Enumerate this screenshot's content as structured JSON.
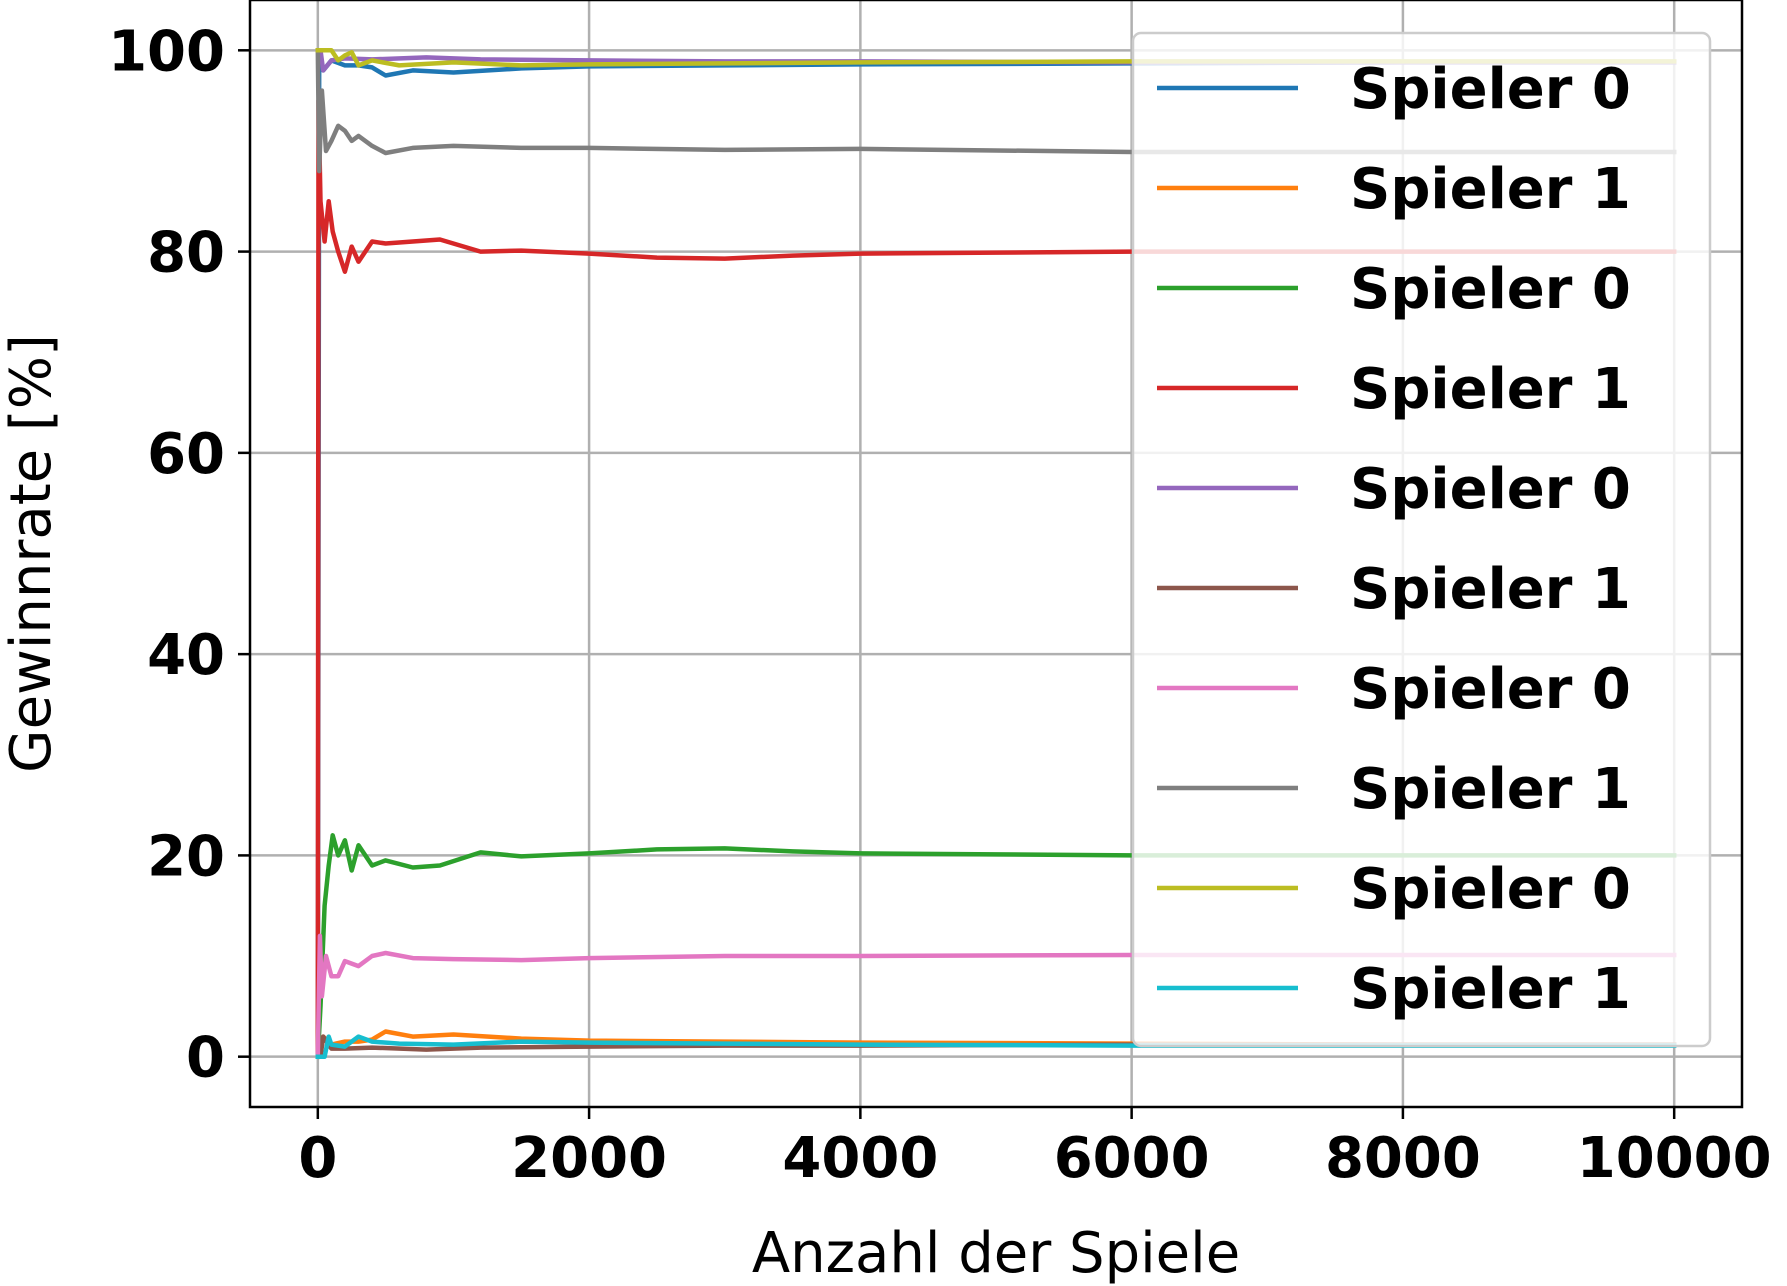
{
  "chart_data": {
    "type": "line",
    "title": "",
    "xlabel": "Anzahl der Spiele",
    "ylabel": "Gewinnrate [%]",
    "xlim": [
      -500,
      10500
    ],
    "ylim": [
      -5,
      105
    ],
    "xticks": [
      0,
      2000,
      4000,
      6000,
      8000,
      10000
    ],
    "xtick_labels": [
      "0",
      "2000",
      "4000",
      "6000",
      "8000",
      "10000"
    ],
    "yticks": [
      0,
      20,
      40,
      60,
      80,
      100
    ],
    "ytick_labels": [
      "0",
      "20",
      "40",
      "60",
      "80",
      "100"
    ],
    "grid": true,
    "legend_position": "upper right",
    "series": [
      {
        "name": "Spieler 0",
        "color": "#1f77b4",
        "points": [
          [
            0,
            0
          ],
          [
            10,
            100
          ],
          [
            40,
            98
          ],
          [
            100,
            99
          ],
          [
            200,
            98.5
          ],
          [
            300,
            98.5
          ],
          [
            400,
            98.3
          ],
          [
            500,
            97.5
          ],
          [
            700,
            98
          ],
          [
            1000,
            97.8
          ],
          [
            1500,
            98.2
          ],
          [
            2000,
            98.4
          ],
          [
            3000,
            98.5
          ],
          [
            4000,
            98.6
          ],
          [
            6000,
            98.7
          ],
          [
            8000,
            98.8
          ],
          [
            10000,
            98.8
          ]
        ]
      },
      {
        "name": "Spieler 1",
        "color": "#ff7f0e",
        "points": [
          [
            0,
            0
          ],
          [
            10,
            0
          ],
          [
            40,
            2
          ],
          [
            100,
            1.2
          ],
          [
            200,
            1.5
          ],
          [
            300,
            1.5
          ],
          [
            400,
            1.7
          ],
          [
            500,
            2.5
          ],
          [
            700,
            2
          ],
          [
            1000,
            2.2
          ],
          [
            1500,
            1.8
          ],
          [
            2000,
            1.6
          ],
          [
            3000,
            1.5
          ],
          [
            4000,
            1.4
          ],
          [
            6000,
            1.3
          ],
          [
            8000,
            1.2
          ],
          [
            10000,
            1.2
          ]
        ]
      },
      {
        "name": "Spieler 0",
        "color": "#2ca02c",
        "points": [
          [
            0,
            0
          ],
          [
            20,
            5
          ],
          [
            50,
            15
          ],
          [
            80,
            19
          ],
          [
            110,
            22
          ],
          [
            150,
            20
          ],
          [
            200,
            21.5
          ],
          [
            250,
            18.5
          ],
          [
            300,
            21
          ],
          [
            400,
            19
          ],
          [
            500,
            19.5
          ],
          [
            700,
            18.8
          ],
          [
            900,
            19
          ],
          [
            1200,
            20.3
          ],
          [
            1500,
            19.9
          ],
          [
            2000,
            20.2
          ],
          [
            2500,
            20.6
          ],
          [
            3000,
            20.7
          ],
          [
            3500,
            20.4
          ],
          [
            4000,
            20.2
          ],
          [
            5000,
            20.1
          ],
          [
            6000,
            20
          ],
          [
            8000,
            20
          ],
          [
            10000,
            20
          ]
        ]
      },
      {
        "name": "Spieler 1",
        "color": "#d62728",
        "points": [
          [
            0,
            0
          ],
          [
            5,
            95
          ],
          [
            20,
            85
          ],
          [
            50,
            81
          ],
          [
            80,
            85
          ],
          [
            110,
            82
          ],
          [
            150,
            80
          ],
          [
            200,
            78
          ],
          [
            250,
            80.5
          ],
          [
            300,
            79
          ],
          [
            400,
            81
          ],
          [
            500,
            80.8
          ],
          [
            700,
            81
          ],
          [
            900,
            81.2
          ],
          [
            1200,
            80
          ],
          [
            1500,
            80.1
          ],
          [
            2000,
            79.8
          ],
          [
            2500,
            79.4
          ],
          [
            3000,
            79.3
          ],
          [
            3500,
            79.6
          ],
          [
            4000,
            79.8
          ],
          [
            5000,
            79.9
          ],
          [
            6000,
            80
          ],
          [
            8000,
            80
          ],
          [
            10000,
            80
          ]
        ]
      },
      {
        "name": "Spieler 0",
        "color": "#9467bd",
        "points": [
          [
            0,
            100
          ],
          [
            20,
            100
          ],
          [
            40,
            98
          ],
          [
            100,
            99
          ],
          [
            200,
            99.2
          ],
          [
            400,
            99.1
          ],
          [
            800,
            99.3
          ],
          [
            1200,
            99.1
          ],
          [
            2000,
            99
          ],
          [
            3000,
            98.9
          ],
          [
            4000,
            98.9
          ],
          [
            6000,
            98.8
          ],
          [
            8000,
            98.8
          ],
          [
            10000,
            98.8
          ]
        ]
      },
      {
        "name": "Spieler 1",
        "color": "#8c564b",
        "points": [
          [
            0,
            0
          ],
          [
            20,
            0
          ],
          [
            40,
            2
          ],
          [
            100,
            0.8
          ],
          [
            200,
            0.8
          ],
          [
            400,
            0.9
          ],
          [
            800,
            0.7
          ],
          [
            1200,
            0.9
          ],
          [
            2000,
            1
          ],
          [
            3000,
            1.1
          ],
          [
            4000,
            1.1
          ],
          [
            6000,
            1.2
          ],
          [
            8000,
            1.2
          ],
          [
            10000,
            1.2
          ]
        ]
      },
      {
        "name": "Spieler 0",
        "color": "#e377c2",
        "points": [
          [
            0,
            0
          ],
          [
            15,
            12
          ],
          [
            30,
            6
          ],
          [
            60,
            10
          ],
          [
            100,
            8
          ],
          [
            150,
            8
          ],
          [
            200,
            9.5
          ],
          [
            300,
            9
          ],
          [
            400,
            10
          ],
          [
            500,
            10.3
          ],
          [
            700,
            9.8
          ],
          [
            1000,
            9.7
          ],
          [
            1500,
            9.6
          ],
          [
            2000,
            9.8
          ],
          [
            3000,
            10
          ],
          [
            4000,
            10
          ],
          [
            6000,
            10.1
          ],
          [
            8000,
            10.1
          ],
          [
            10000,
            10.1
          ]
        ]
      },
      {
        "name": "Spieler 1",
        "color": "#7f7f7f",
        "points": [
          [
            0,
            100
          ],
          [
            10,
            88
          ],
          [
            30,
            96
          ],
          [
            60,
            90
          ],
          [
            100,
            91
          ],
          [
            150,
            92.5
          ],
          [
            200,
            92
          ],
          [
            250,
            91
          ],
          [
            300,
            91.5
          ],
          [
            400,
            90.5
          ],
          [
            500,
            89.8
          ],
          [
            700,
            90.3
          ],
          [
            1000,
            90.5
          ],
          [
            1500,
            90.3
          ],
          [
            2000,
            90.3
          ],
          [
            3000,
            90.1
          ],
          [
            4000,
            90.2
          ],
          [
            6000,
            89.9
          ],
          [
            8000,
            89.9
          ],
          [
            10000,
            89.9
          ]
        ]
      },
      {
        "name": "Spieler 0",
        "color": "#bcbd22",
        "points": [
          [
            0,
            100
          ],
          [
            100,
            100
          ],
          [
            150,
            99
          ],
          [
            200,
            99.5
          ],
          [
            250,
            99.8
          ],
          [
            300,
            98.5
          ],
          [
            400,
            99
          ],
          [
            600,
            98.5
          ],
          [
            1000,
            98.8
          ],
          [
            1500,
            98.5
          ],
          [
            2000,
            98.6
          ],
          [
            3000,
            98.7
          ],
          [
            4000,
            98.8
          ],
          [
            6000,
            98.9
          ],
          [
            8000,
            98.9
          ],
          [
            10000,
            98.9
          ]
        ]
      },
      {
        "name": "Spieler 1",
        "color": "#17becf",
        "points": [
          [
            0,
            0
          ],
          [
            50,
            0
          ],
          [
            80,
            2
          ],
          [
            100,
            1.2
          ],
          [
            200,
            1
          ],
          [
            300,
            2
          ],
          [
            400,
            1.5
          ],
          [
            600,
            1.3
          ],
          [
            1000,
            1.2
          ],
          [
            1500,
            1.5
          ],
          [
            2000,
            1.4
          ],
          [
            3000,
            1.3
          ],
          [
            4000,
            1.2
          ],
          [
            6000,
            1.1
          ],
          [
            8000,
            1.1
          ],
          [
            10000,
            1.1
          ]
        ]
      }
    ]
  }
}
